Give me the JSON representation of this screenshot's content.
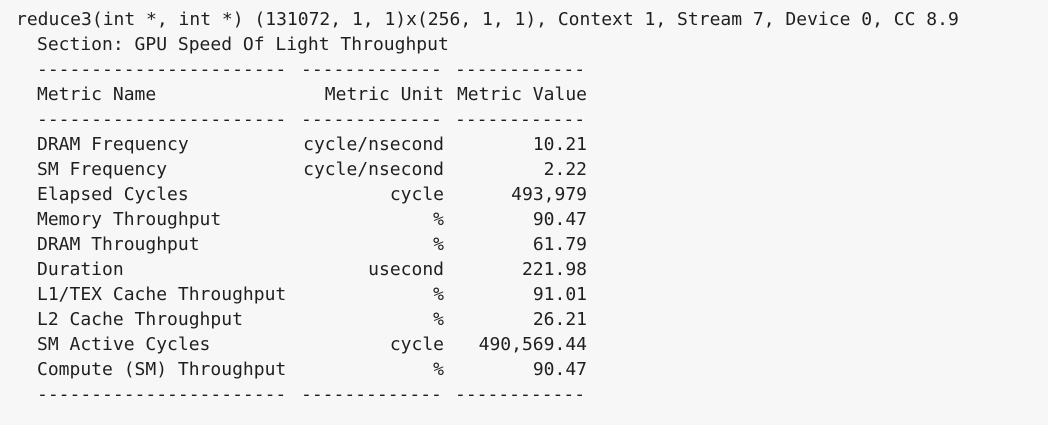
{
  "header": {
    "kernel": "reduce3(int *, int *) (131072, 1, 1)x(256, 1, 1), Context 1, Stream 7, Device 0, CC 8.9",
    "section": "Section: GPU Speed Of Light Throughput"
  },
  "table": {
    "rule": [
      "-----------------------",
      "-------------",
      "------------"
    ],
    "columns": [
      "Metric Name",
      "Metric Unit",
      "Metric Value"
    ],
    "rows": [
      [
        "DRAM Frequency",
        "cycle/nsecond",
        "10.21"
      ],
      [
        "SM Frequency",
        "cycle/nsecond",
        "2.22"
      ],
      [
        "Elapsed Cycles",
        "cycle",
        "493,979"
      ],
      [
        "Memory Throughput",
        "%",
        "90.47"
      ],
      [
        "DRAM Throughput",
        "%",
        "61.79"
      ],
      [
        "Duration",
        "usecond",
        "221.98"
      ],
      [
        "L1/TEX Cache Throughput",
        "%",
        "91.01"
      ],
      [
        "L2 Cache Throughput",
        "%",
        "26.21"
      ],
      [
        "SM Active Cycles",
        "cycle",
        "490,569.44"
      ],
      [
        "Compute (SM) Throughput",
        "%",
        "90.47"
      ]
    ]
  }
}
